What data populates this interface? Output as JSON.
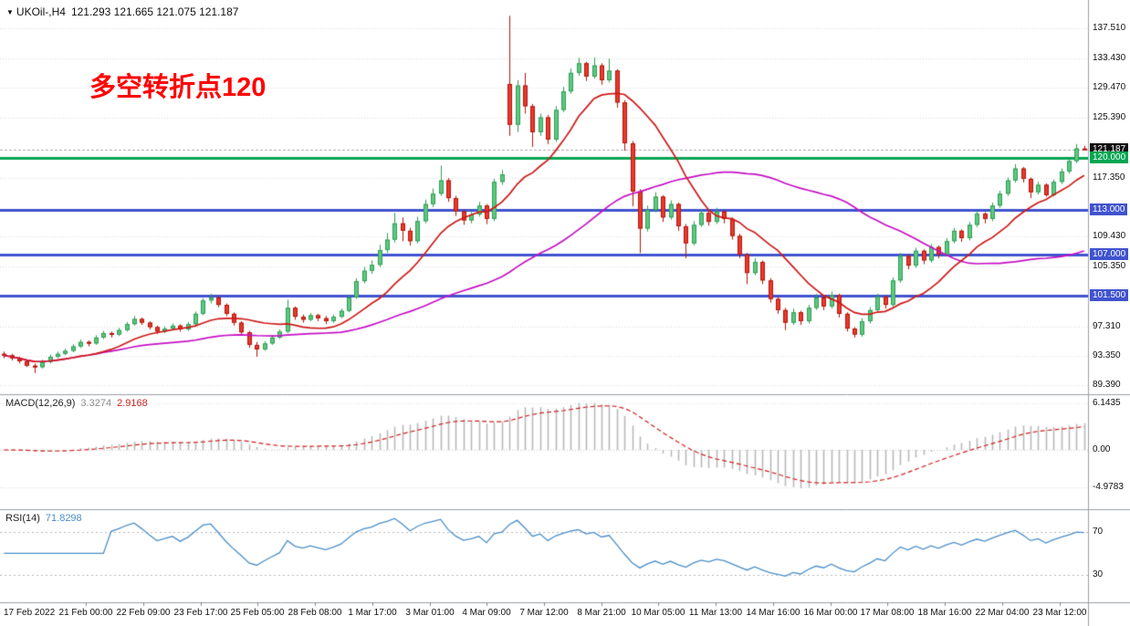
{
  "header": {
    "dropdown_icon": "▼",
    "symbol": "UKOil-,H4",
    "ohlc": "121.293 121.665 121.075 121.187"
  },
  "annotation": {
    "text": "多空转折点120",
    "color": "#ff0000"
  },
  "colors": {
    "bull": "#5ec87f",
    "bull_border": "#2f9e57",
    "bear": "#e8392c",
    "bear_border": "#b3170c",
    "ma_fast": "#cf1a1a",
    "ma_slow": "#c511c5",
    "hline_green": "#00a651",
    "hline_blue": "#4053cf",
    "grid": "#dcdcdc",
    "separator": "#98a0a8",
    "macd_hist": "#b9b9b9",
    "macd_signal": "#cf2222",
    "rsi_line": "#4b8fc9",
    "badge_dark": "#111111",
    "current_price_line": "#aaaaaa"
  },
  "chart_data": {
    "type": "candlestick",
    "symbol": "UKOil-",
    "timeframe": "H4",
    "title": "UKOil- H4 candlestick chart with MACD and RSI",
    "ohlc_display": {
      "open": "121.293",
      "high": "121.665",
      "low": "121.075",
      "close": "121.187"
    },
    "price_axis": {
      "ticks": [
        "137.510",
        "133.430",
        "129.470",
        "125.390",
        "117.350",
        "109.430",
        "105.350",
        "97.310",
        "93.350",
        "89.390"
      ],
      "ylim": [
        88.15,
        141.33
      ]
    },
    "current_price": {
      "value": 121.187,
      "label": "121.187"
    },
    "hlines": [
      {
        "value": 120.0,
        "label": "120.000",
        "color": "green"
      },
      {
        "value": 113.0,
        "label": "113.000",
        "color": "blue"
      },
      {
        "value": 107.0,
        "label": "107.000",
        "color": "blue"
      },
      {
        "value": 101.5,
        "label": "101.500",
        "color": "blue"
      }
    ],
    "overlays": {
      "ma_fast_window": 12,
      "ma_slow_window": 45
    },
    "macd": {
      "label": "MACD(12,26,9)",
      "params": [
        12,
        26,
        9
      ],
      "main": "3.3274",
      "signal": "2.9168",
      "ticks": [
        "6.1435",
        "0.00",
        "-4.9783"
      ],
      "ylim": [
        -7.8,
        7.2
      ]
    },
    "rsi": {
      "label": "RSI(14)",
      "period": 14,
      "value": "71.8298",
      "ticks": [
        "70",
        "30"
      ],
      "levels": [
        70,
        30
      ],
      "ylim": [
        4.4,
        90.4
      ]
    },
    "time_labels": [
      "17 Feb 2022",
      "21 Feb 00:00",
      "22 Feb 09:00",
      "23 Feb 17:00",
      "25 Feb 05:00",
      "28 Feb 08:00",
      "1 Mar 17:00",
      "3 Mar 01:00",
      "4 Mar 09:00",
      "7 Mar 12:00",
      "8 Mar 21:00",
      "10 Mar 05:00",
      "11 Mar 13:00",
      "14 Mar 16:00",
      "16 Mar 00:00",
      "17 Mar 08:00",
      "18 Mar 16:00",
      "22 Mar 04:00",
      "23 Mar 12:00"
    ],
    "candles": [
      [
        93.6,
        93.9,
        93.0,
        93.4
      ],
      [
        93.4,
        93.6,
        92.7,
        93.0
      ],
      [
        93.0,
        93.2,
        92.3,
        92.6
      ],
      [
        92.6,
        92.8,
        91.8,
        92.0
      ],
      [
        92.0,
        92.3,
        91.0,
        91.8
      ],
      [
        91.8,
        92.8,
        91.6,
        92.5
      ],
      [
        92.5,
        93.5,
        92.3,
        93.2
      ],
      [
        93.2,
        93.9,
        93.0,
        93.6
      ],
      [
        93.6,
        94.3,
        93.4,
        94.0
      ],
      [
        94.0,
        94.9,
        93.8,
        94.6
      ],
      [
        94.6,
        95.5,
        94.4,
        95.2
      ],
      [
        95.2,
        95.4,
        94.6,
        95.0
      ],
      [
        95.0,
        96.1,
        94.8,
        95.8
      ],
      [
        95.8,
        96.7,
        95.6,
        96.4
      ],
      [
        96.4,
        96.6,
        95.8,
        96.2
      ],
      [
        96.2,
        97.1,
        96.0,
        96.8
      ],
      [
        96.8,
        97.9,
        96.6,
        97.6
      ],
      [
        97.6,
        98.7,
        97.4,
        98.3
      ],
      [
        98.3,
        98.5,
        97.5,
        97.8
      ],
      [
        97.8,
        98.0,
        96.9,
        97.2
      ],
      [
        97.2,
        97.4,
        96.3,
        96.6
      ],
      [
        96.6,
        97.3,
        96.4,
        97.0
      ],
      [
        97.0,
        97.7,
        96.8,
        97.4
      ],
      [
        97.4,
        97.6,
        96.6,
        96.9
      ],
      [
        96.9,
        97.9,
        96.7,
        97.6
      ],
      [
        97.6,
        99.3,
        97.4,
        99.0
      ],
      [
        99.0,
        101.1,
        98.8,
        100.8
      ],
      [
        100.8,
        101.7,
        100.4,
        101.2
      ],
      [
        101.2,
        101.4,
        99.9,
        100.2
      ],
      [
        100.2,
        100.4,
        98.7,
        99.0
      ],
      [
        99.0,
        99.2,
        97.4,
        97.8
      ],
      [
        97.8,
        98.0,
        96.1,
        96.5
      ],
      [
        96.5,
        96.7,
        94.4,
        94.8
      ],
      [
        94.8,
        95.2,
        93.2,
        94.2
      ],
      [
        94.2,
        95.3,
        94.0,
        95.0
      ],
      [
        95.0,
        96.1,
        94.8,
        95.8
      ],
      [
        95.8,
        96.9,
        95.6,
        96.6
      ],
      [
        96.6,
        100.9,
        96.4,
        99.8
      ],
      [
        99.8,
        100.0,
        98.2,
        98.6
      ],
      [
        98.6,
        98.9,
        97.8,
        98.2
      ],
      [
        98.2,
        99.1,
        98.0,
        98.8
      ],
      [
        98.8,
        99.0,
        98.0,
        98.4
      ],
      [
        98.4,
        98.7,
        97.6,
        98.0
      ],
      [
        98.0,
        98.9,
        97.8,
        98.6
      ],
      [
        98.6,
        99.7,
        98.4,
        99.4
      ],
      [
        99.4,
        101.6,
        99.2,
        101.2
      ],
      [
        101.2,
        103.8,
        101.0,
        103.4
      ],
      [
        103.4,
        105.3,
        103.1,
        104.8
      ],
      [
        104.8,
        106.2,
        104.4,
        105.6
      ],
      [
        105.6,
        108.3,
        105.3,
        107.6
      ],
      [
        107.6,
        109.9,
        107.2,
        109.0
      ],
      [
        109.0,
        112.6,
        108.6,
        111.2
      ],
      [
        111.2,
        112.0,
        108.8,
        110.2
      ],
      [
        110.2,
        110.6,
        108.2,
        108.8
      ],
      [
        108.8,
        112.1,
        108.5,
        111.5
      ],
      [
        111.5,
        114.4,
        111.2,
        113.8
      ],
      [
        113.8,
        115.9,
        113.4,
        115.2
      ],
      [
        115.2,
        119.0,
        114.9,
        117.0
      ],
      [
        117.0,
        117.3,
        114.1,
        114.6
      ],
      [
        114.6,
        114.9,
        112.2,
        112.8
      ],
      [
        112.8,
        113.1,
        111.0,
        111.6
      ],
      [
        111.6,
        112.9,
        111.2,
        112.4
      ],
      [
        112.4,
        114.1,
        112.1,
        113.6
      ],
      [
        113.6,
        113.8,
        111.1,
        111.8
      ],
      [
        111.8,
        117.2,
        111.5,
        116.8
      ],
      [
        116.8,
        118.4,
        116.4,
        117.8
      ],
      [
        130.0,
        139.2,
        123.0,
        124.5
      ],
      [
        124.5,
        130.5,
        123.5,
        129.8
      ],
      [
        129.8,
        131.5,
        126.0,
        127.0
      ],
      [
        127.0,
        127.3,
        121.5,
        123.5
      ],
      [
        123.5,
        126.0,
        123.0,
        125.5
      ],
      [
        125.5,
        125.8,
        121.9,
        122.5
      ],
      [
        122.5,
        127.0,
        122.2,
        126.5
      ],
      [
        126.5,
        129.6,
        126.2,
        129.0
      ],
      [
        129.0,
        132.1,
        128.7,
        131.5
      ],
      [
        131.5,
        133.5,
        131.1,
        132.8
      ],
      [
        132.8,
        133.0,
        130.4,
        131.0
      ],
      [
        131.0,
        133.6,
        130.7,
        132.5
      ],
      [
        132.5,
        132.8,
        129.9,
        130.5
      ],
      [
        130.5,
        133.4,
        130.2,
        131.8
      ],
      [
        131.8,
        132.0,
        126.8,
        127.5
      ],
      [
        127.5,
        127.8,
        121.0,
        122.0
      ],
      [
        122.0,
        122.3,
        113.5,
        115.5
      ],
      [
        115.5,
        115.8,
        107.2,
        110.5
      ],
      [
        110.5,
        113.6,
        110.1,
        113.0
      ],
      [
        113.0,
        115.4,
        112.7,
        114.8
      ],
      [
        114.8,
        115.0,
        111.4,
        112.0
      ],
      [
        112.0,
        114.3,
        111.7,
        113.8
      ],
      [
        113.8,
        114.0,
        110.2,
        110.8
      ],
      [
        110.8,
        111.1,
        106.5,
        108.5
      ],
      [
        108.5,
        111.5,
        108.2,
        111.0
      ],
      [
        111.0,
        113.1,
        110.7,
        112.6
      ],
      [
        112.6,
        112.9,
        110.9,
        111.4
      ],
      [
        111.4,
        113.3,
        111.1,
        112.8
      ],
      [
        112.8,
        113.0,
        111.2,
        111.8
      ],
      [
        111.8,
        112.0,
        109.0,
        109.5
      ],
      [
        109.5,
        109.8,
        106.5,
        107.0
      ],
      [
        107.0,
        107.2,
        103.0,
        104.5
      ],
      [
        104.5,
        106.5,
        104.2,
        106.0
      ],
      [
        106.0,
        106.2,
        103.0,
        103.5
      ],
      [
        103.5,
        103.8,
        100.5,
        101.0
      ],
      [
        101.0,
        101.3,
        99.0,
        99.5
      ],
      [
        99.5,
        99.8,
        96.8,
        97.8
      ],
      [
        97.8,
        99.7,
        97.5,
        99.2
      ],
      [
        99.2,
        99.4,
        97.5,
        98.0
      ],
      [
        98.0,
        100.2,
        97.7,
        99.8
      ],
      [
        99.8,
        101.7,
        99.5,
        101.2
      ],
      [
        101.2,
        101.4,
        99.5,
        100.0
      ],
      [
        100.0,
        102.0,
        99.7,
        101.5
      ],
      [
        101.5,
        101.7,
        98.5,
        99.0
      ],
      [
        99.0,
        99.2,
        96.6,
        97.0
      ],
      [
        97.0,
        97.2,
        95.8,
        96.2
      ],
      [
        96.2,
        98.4,
        95.9,
        98.0
      ],
      [
        98.0,
        99.9,
        97.7,
        99.5
      ],
      [
        99.5,
        101.7,
        99.2,
        101.3
      ],
      [
        101.3,
        101.5,
        99.7,
        100.2
      ],
      [
        100.2,
        103.9,
        99.9,
        103.5
      ],
      [
        103.5,
        107.2,
        103.2,
        106.8
      ],
      [
        106.8,
        107.0,
        105.0,
        105.5
      ],
      [
        105.5,
        107.9,
        105.2,
        107.5
      ],
      [
        107.5,
        107.7,
        105.7,
        106.2
      ],
      [
        106.2,
        108.4,
        105.9,
        108.0
      ],
      [
        108.0,
        108.2,
        106.5,
        107.0
      ],
      [
        107.0,
        109.2,
        106.7,
        108.8
      ],
      [
        108.8,
        110.6,
        108.5,
        110.2
      ],
      [
        110.2,
        110.4,
        108.7,
        109.2
      ],
      [
        109.2,
        111.4,
        108.9,
        111.0
      ],
      [
        111.0,
        112.9,
        110.7,
        112.5
      ],
      [
        112.5,
        112.7,
        111.2,
        111.8
      ],
      [
        111.8,
        114.0,
        111.5,
        113.6
      ],
      [
        113.6,
        115.6,
        113.3,
        115.2
      ],
      [
        115.2,
        117.4,
        114.9,
        117.0
      ],
      [
        117.0,
        119.2,
        116.7,
        118.6
      ],
      [
        118.6,
        118.8,
        116.7,
        117.2
      ],
      [
        117.2,
        117.4,
        114.6,
        115.4
      ],
      [
        115.4,
        116.8,
        115.1,
        116.4
      ],
      [
        116.4,
        116.6,
        114.8,
        115.0
      ],
      [
        115.0,
        117.1,
        114.8,
        116.8
      ],
      [
        116.8,
        118.6,
        116.5,
        118.2
      ],
      [
        118.2,
        120.0,
        117.9,
        119.6
      ],
      [
        119.6,
        121.9,
        119.3,
        121.3
      ],
      [
        121.293,
        121.665,
        121.075,
        121.187
      ]
    ]
  }
}
